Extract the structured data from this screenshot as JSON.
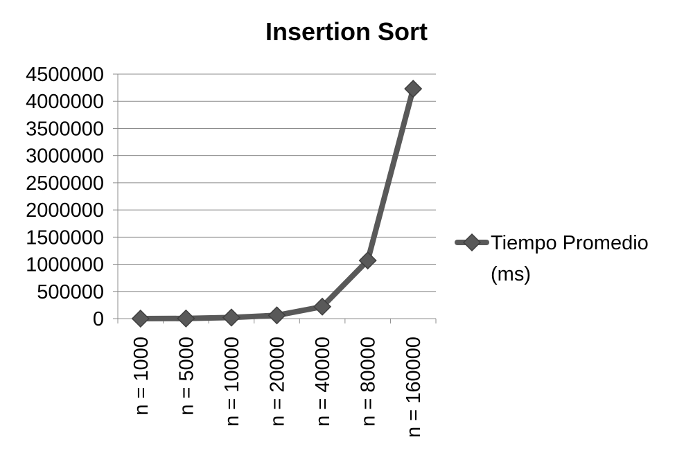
{
  "chart_data": {
    "type": "line",
    "title": "Insertion Sort",
    "categories": [
      "n = 1000",
      "n = 5000",
      "n = 10000",
      "n = 20000",
      "n = 40000",
      "n = 80000",
      "n = 160000"
    ],
    "series": [
      {
        "name": "Tiempo Promedio (ms)",
        "name_lines": [
          "Tiempo Promedio",
          "(ms)"
        ],
        "values": [
          100,
          3000,
          20000,
          60000,
          220000,
          1070000,
          4230000
        ],
        "color": "#595959",
        "marker": "diamond"
      }
    ],
    "xlabel": "",
    "ylabel": "",
    "ylim": [
      0,
      4500000
    ],
    "yticks": [
      0,
      500000,
      1000000,
      1500000,
      2000000,
      2500000,
      3000000,
      3500000,
      4000000,
      4500000
    ],
    "grid": true,
    "legend_position": "right"
  }
}
